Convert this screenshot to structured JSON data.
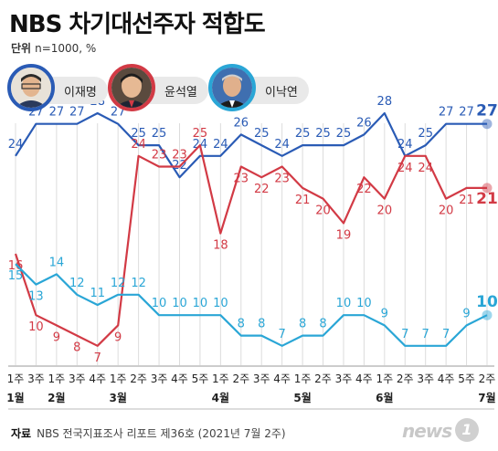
{
  "title": "NBS 차기대선주자 적합도",
  "unit_label": "단위",
  "unit_text": "n=1000, %",
  "legend": [
    {
      "name": "이재명",
      "color": "#2a5bb5"
    },
    {
      "name": "윤석열",
      "color": "#d23a45"
    },
    {
      "name": "이낙연",
      "color": "#2aa6d6"
    }
  ],
  "source_label": "자료",
  "source_text": "NBS 전국지표조사 리포트 제36호 (2021년 7월 2주)",
  "logo_text": "news",
  "logo_badge": "1",
  "chart_data": {
    "type": "line",
    "categories": [
      "1주",
      "3주",
      "1주",
      "3주",
      "4주",
      "1주",
      "2주",
      "3주",
      "4주",
      "5주",
      "1주",
      "2주",
      "3주",
      "4주",
      "1주",
      "2주",
      "3주",
      "4주",
      "1주",
      "2주",
      "3주",
      "4주",
      "5주",
      "2주"
    ],
    "months": [
      {
        "label": "1월",
        "index": 0
      },
      {
        "label": "2월",
        "index": 2
      },
      {
        "label": "3월",
        "index": 5
      },
      {
        "label": "4월",
        "index": 10
      },
      {
        "label": "5월",
        "index": 14
      },
      {
        "label": "6월",
        "index": 18
      },
      {
        "label": "7월",
        "index": 23
      }
    ],
    "series": [
      {
        "name": "이재명",
        "color": "#2a5bb5",
        "values": [
          24,
          27,
          27,
          27,
          28,
          27,
          25,
          25,
          22,
          24,
          24,
          26,
          25,
          24,
          25,
          25,
          25,
          26,
          28,
          24,
          25,
          27,
          27,
          27
        ]
      },
      {
        "name": "윤석열",
        "color": "#d23a45",
        "values": [
          16,
          10,
          9,
          8,
          7,
          9,
          24,
          23,
          23,
          25,
          18,
          23,
          22,
          23,
          21,
          20,
          19,
          22,
          20,
          24,
          24,
          20,
          21,
          21
        ]
      },
      {
        "name": "이낙연",
        "color": "#2aa6d6",
        "values": [
          15,
          13,
          14,
          12,
          11,
          12,
          12,
          10,
          10,
          10,
          10,
          8,
          8,
          7,
          8,
          8,
          10,
          10,
          9,
          7,
          7,
          7,
          9,
          10
        ]
      }
    ]
  }
}
